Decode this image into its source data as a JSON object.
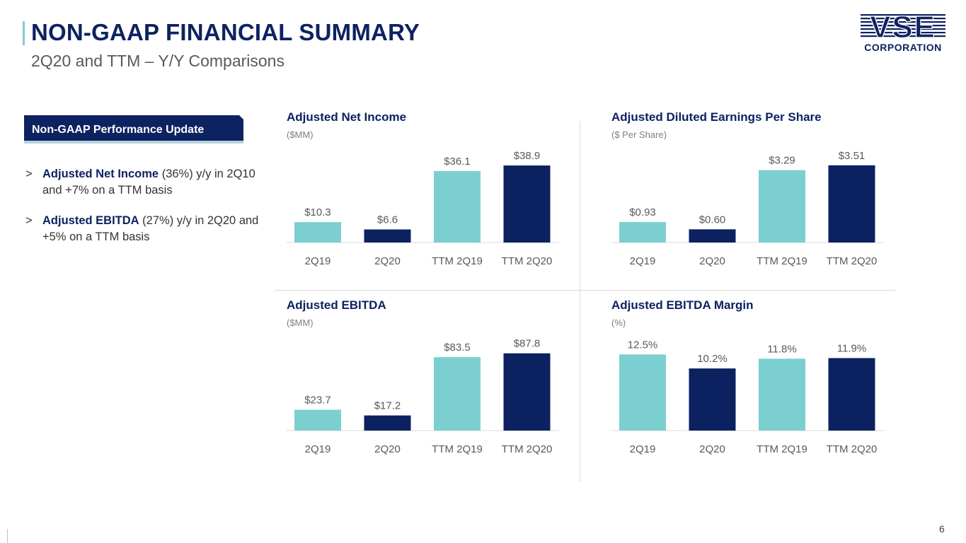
{
  "header": {
    "title": "NON-GAAP FINANCIAL SUMMARY",
    "subtitle": "2Q20 and TTM – Y/Y Comparisons"
  },
  "logo": {
    "main": "VSE",
    "sub": "CORPORATION"
  },
  "sidebar": {
    "badge": "Non-GAAP Performance Update",
    "bullets": [
      {
        "mark": ">",
        "bold": "Adjusted Net Income",
        "text": " (36%) y/y in 2Q10 and +7% on a TTM basis"
      },
      {
        "mark": ">",
        "bold": "Adjusted EBITDA",
        "text": " (27%) y/y in 2Q20 and +5% on a TTM basis"
      }
    ]
  },
  "colors": {
    "light": "#7ccfd0",
    "dark": "#0c2160",
    "title": "#0d2260",
    "axis": "#d9d9d9",
    "label": "#595959"
  },
  "chart_data": [
    {
      "type": "bar",
      "title": "Adjusted Net Income",
      "unit": "($MM)",
      "categories": [
        "2Q19",
        "2Q20",
        "TTM 2Q19",
        "TTM 2Q20"
      ],
      "values": [
        10.3,
        6.6,
        36.1,
        38.9
      ],
      "labels": [
        "$10.3",
        "$6.6",
        "$36.1",
        "$38.9"
      ],
      "ylim": [
        0,
        40
      ]
    },
    {
      "type": "bar",
      "title": "Adjusted Diluted Earnings Per Share",
      "unit": "($ Per Share)",
      "categories": [
        "2Q19",
        "2Q20",
        "TTM 2Q19",
        "TTM 2Q20"
      ],
      "values": [
        0.93,
        0.6,
        3.29,
        3.51
      ],
      "labels": [
        "$0.93",
        "$0.60",
        "$3.29",
        "$3.51"
      ],
      "ylim": [
        0,
        3.6
      ]
    },
    {
      "type": "bar",
      "title": "Adjusted EBITDA",
      "unit": "($MM)",
      "categories": [
        "2Q19",
        "2Q20",
        "TTM 2Q19",
        "TTM 2Q20"
      ],
      "values": [
        23.7,
        17.2,
        83.5,
        87.8
      ],
      "labels": [
        "$23.7",
        "$17.2",
        "$83.5",
        "$87.8"
      ],
      "ylim": [
        0,
        90
      ]
    },
    {
      "type": "bar",
      "title": "Adjusted EBITDA Margin",
      "unit": "(%)",
      "categories": [
        "2Q19",
        "2Q20",
        "TTM 2Q19",
        "TTM 2Q20"
      ],
      "values": [
        12.5,
        10.2,
        11.8,
        11.9
      ],
      "labels": [
        "12.5%",
        "10.2%",
        "11.8%",
        "11.9%"
      ],
      "ylim": [
        0,
        13
      ]
    }
  ],
  "footer": {
    "page_number": "6"
  }
}
